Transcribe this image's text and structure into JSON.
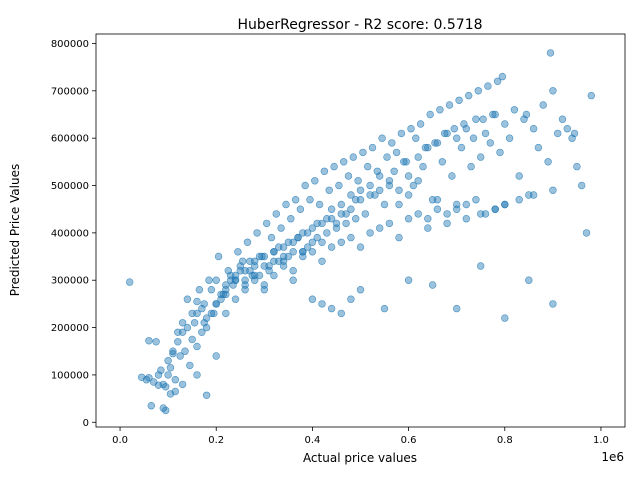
{
  "chart_data": {
    "type": "scatter",
    "title": "HuberRegressor - R2 score: 0.5718",
    "xlabel": "Actual price values",
    "ylabel": "Predicted Price Values",
    "x_offset_label": "1e6",
    "xlim": [
      -50000,
      1050000
    ],
    "ylim": [
      -10000,
      820000
    ],
    "xticks": [
      0,
      200000,
      400000,
      600000,
      800000,
      1000000
    ],
    "xtick_labels": [
      "0.0",
      "0.2",
      "0.4",
      "0.6",
      "0.8",
      "1.0"
    ],
    "yticks": [
      0,
      100000,
      200000,
      300000,
      400000,
      500000,
      600000,
      700000,
      800000
    ],
    "ytick_labels": [
      "0",
      "100000",
      "200000",
      "300000",
      "400000",
      "500000",
      "600000",
      "700000",
      "800000"
    ],
    "grid": false,
    "point_color": "#1f77b4",
    "point_alpha": 0.45,
    "series": [
      {
        "x": [
          20000,
          45000,
          55000,
          60000,
          70000,
          80000,
          85000,
          90000,
          95000,
          100000,
          105000,
          110000,
          115000,
          120000,
          130000,
          135000,
          140000,
          150000,
          160000,
          170000,
          180000,
          190000,
          200000,
          210000,
          220000,
          230000,
          240000,
          250000,
          260000,
          270000,
          280000,
          290000,
          300000,
          310000,
          320000,
          330000,
          340000,
          350000,
          360000,
          370000,
          380000,
          390000,
          400000,
          410000,
          420000,
          430000,
          440000,
          450000,
          460000,
          470000,
          480000,
          490000,
          500000,
          510000,
          520000,
          530000,
          540000,
          550000,
          560000,
          570000,
          580000,
          590000,
          600000,
          610000,
          620000,
          630000,
          640000,
          650000,
          660000,
          670000,
          680000,
          690000,
          700000,
          710000,
          720000,
          730000,
          740000,
          750000,
          760000,
          770000,
          780000,
          790000,
          800000,
          810000,
          820000,
          830000,
          840000,
          850000,
          860000,
          870000,
          880000,
          890000,
          900000,
          910000,
          920000,
          930000,
          940000,
          950000,
          960000,
          970000,
          980000,
          60000,
          65000,
          75000,
          80000,
          90000,
          95000,
          100000,
          105000,
          110000,
          115000,
          120000,
          125000,
          130000,
          140000,
          150000,
          155000,
          160000,
          165000,
          170000,
          175000,
          185000,
          195000,
          205000,
          215000,
          225000,
          235000,
          245000,
          255000,
          265000,
          275000,
          285000,
          295000,
          305000,
          315000,
          325000,
          335000,
          345000,
          355000,
          365000,
          375000,
          385000,
          395000,
          405000,
          415000,
          425000,
          435000,
          445000,
          455000,
          465000,
          475000,
          485000,
          495000,
          505000,
          515000,
          525000,
          535000,
          545000,
          555000,
          565000,
          575000,
          585000,
          595000,
          605000,
          615000,
          625000,
          635000,
          645000,
          655000,
          665000,
          675000,
          685000,
          695000,
          705000,
          715000,
          725000,
          735000,
          745000,
          755000,
          765000,
          775000,
          785000,
          795000,
          845000,
          895000,
          945000,
          130000,
          145000,
          160000,
          175000,
          190000,
          200000,
          210000,
          220000,
          230000,
          240000,
          250000,
          260000,
          270000,
          280000,
          290000,
          300000,
          310000,
          320000,
          330000,
          340000,
          350000,
          360000,
          370000,
          380000,
          390000,
          400000,
          410000,
          420000,
          430000,
          440000,
          450000,
          460000,
          470000,
          480000,
          490000,
          500000,
          520000,
          540000,
          560000,
          580000,
          600000,
          620000,
          640000,
          660000,
          680000,
          700000,
          720000,
          740000,
          760000,
          780000,
          800000,
          160000,
          180000,
          200000,
          220000,
          240000,
          260000,
          280000,
          300000,
          320000,
          340000,
          360000,
          380000,
          400000,
          420000,
          440000,
          460000,
          480000,
          500000,
          520000,
          540000,
          560000,
          580000,
          600000,
          620000,
          640000,
          660000,
          680000,
          700000,
          720000,
          750000,
          780000,
          800000,
          830000,
          860000,
          900000,
          180000,
          200000,
          220000,
          240000,
          260000,
          280000,
          300000,
          320000,
          340000,
          360000,
          380000,
          400000,
          420000,
          440000,
          460000,
          480000,
          500000,
          550000,
          600000,
          650000,
          700000,
          750000,
          800000,
          850000,
          900000
        ],
        "y": [
          296000,
          95000,
          90000,
          172000,
          85000,
          78000,
          110000,
          30000,
          75000,
          130000,
          60000,
          145000,
          90000,
          170000,
          210000,
          150000,
          200000,
          230000,
          255000,
          240000,
          220000,
          280000,
          300000,
          260000,
          290000,
          310000,
          300000,
          330000,
          290000,
          320000,
          340000,
          310000,
          350000,
          330000,
          360000,
          370000,
          340000,
          380000,
          360000,
          390000,
          400000,
          370000,
          410000,
          420000,
          380000,
          430000,
          450000,
          420000,
          460000,
          440000,
          480000,
          470000,
          490000,
          440000,
          500000,
          480000,
          520000,
          460000,
          510000,
          530000,
          490000,
          550000,
          520000,
          500000,
          560000,
          540000,
          580000,
          470000,
          590000,
          550000,
          610000,
          520000,
          600000,
          580000,
          620000,
          540000,
          640000,
          560000,
          610000,
          590000,
          650000,
          570000,
          630000,
          600000,
          660000,
          520000,
          640000,
          480000,
          620000,
          580000,
          670000,
          550000,
          700000,
          610000,
          640000,
          620000,
          600000,
          540000,
          500000,
          400000,
          690000,
          94000,
          35000,
          170000,
          100000,
          80000,
          25000,
          100000,
          115000,
          150000,
          65000,
          190000,
          140000,
          190000,
          260000,
          175000,
          210000,
          230000,
          280000,
          190000,
          250000,
          300000,
          230000,
          350000,
          270000,
          320000,
          290000,
          360000,
          340000,
          380000,
          310000,
          400000,
          350000,
          420000,
          390000,
          440000,
          410000,
          460000,
          430000,
          470000,
          450000,
          500000,
          470000,
          510000,
          460000,
          530000,
          490000,
          540000,
          500000,
          550000,
          520000,
          560000,
          510000,
          570000,
          540000,
          580000,
          530000,
          600000,
          560000,
          590000,
          570000,
          610000,
          550000,
          620000,
          600000,
          630000,
          580000,
          650000,
          590000,
          660000,
          610000,
          670000,
          620000,
          680000,
          630000,
          690000,
          600000,
          700000,
          640000,
          710000,
          650000,
          720000,
          730000,
          650000,
          780000,
          610000,
          80000,
          120000,
          160000,
          210000,
          230000,
          250000,
          270000,
          280000,
          300000,
          310000,
          320000,
          300000,
          340000,
          310000,
          350000,
          330000,
          320000,
          360000,
          340000,
          370000,
          350000,
          380000,
          390000,
          360000,
          400000,
          380000,
          390000,
          420000,
          400000,
          430000,
          410000,
          440000,
          420000,
          450000,
          430000,
          470000,
          480000,
          490000,
          500000,
          460000,
          480000,
          510000,
          430000,
          470000,
          440000,
          450000,
          460000,
          470000,
          440000,
          450000,
          460000,
          100000,
          200000,
          250000,
          230000,
          260000,
          280000,
          300000,
          290000,
          310000,
          330000,
          320000,
          350000,
          360000,
          340000,
          370000,
          380000,
          390000,
          370000,
          400000,
          410000,
          420000,
          390000,
          430000,
          440000,
          410000,
          450000,
          420000,
          460000,
          430000,
          440000,
          450000,
          460000,
          470000,
          480000,
          490000,
          57000,
          140000,
          270000,
          300000,
          320000,
          330000,
          280000,
          340000,
          350000,
          300000,
          360000,
          260000,
          250000,
          240000,
          230000,
          260000,
          280000,
          240000,
          300000,
          290000,
          240000,
          330000,
          220000,
          300000,
          250000
        ]
      }
    ]
  }
}
